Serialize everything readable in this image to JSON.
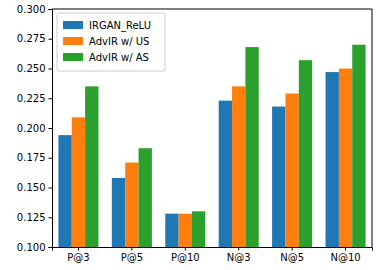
{
  "chart_data": {
    "type": "bar",
    "categories": [
      "P@3",
      "P@5",
      "P@10",
      "N@3",
      "N@5",
      "N@10"
    ],
    "series": [
      {
        "name": "IRGAN_ReLU",
        "color": "#1f77b4",
        "values": [
          0.194,
          0.158,
          0.128,
          0.223,
          0.218,
          0.247
        ]
      },
      {
        "name": "AdvIR w/ US",
        "color": "#ff7f0e",
        "values": [
          0.209,
          0.171,
          0.128,
          0.235,
          0.229,
          0.25
        ]
      },
      {
        "name": "AdvIR w/ AS",
        "color": "#2ca02c",
        "values": [
          0.235,
          0.183,
          0.13,
          0.268,
          0.257,
          0.27
        ]
      }
    ],
    "ylim": [
      0.1,
      0.3
    ],
    "yticks": [
      {
        "value": 0.1,
        "label": "0.100"
      },
      {
        "value": 0.125,
        "label": "0.125"
      },
      {
        "value": 0.15,
        "label": "0.150"
      },
      {
        "value": 0.175,
        "label": "0.175"
      },
      {
        "value": 0.2,
        "label": "0.200"
      },
      {
        "value": 0.225,
        "label": "0.225"
      },
      {
        "value": 0.25,
        "label": "0.250"
      },
      {
        "value": 0.275,
        "label": "0.275"
      },
      {
        "value": 0.3,
        "label": "0.300"
      }
    ],
    "grid": false,
    "legend": "upper left"
  }
}
